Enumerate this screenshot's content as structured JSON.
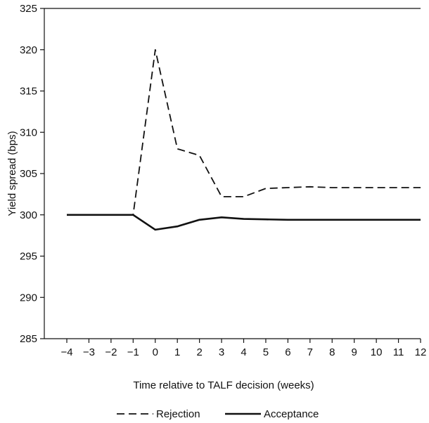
{
  "chart_data": {
    "type": "line",
    "title": "",
    "xlabel": "Time relative to TALF decision (weeks)",
    "ylabel": "Yield spread (bps)",
    "xlim": [
      -4,
      12
    ],
    "ylim": [
      285,
      325
    ],
    "x_ticks": [
      "−4",
      "−3",
      "−2",
      "−1",
      "0",
      "1",
      "2",
      "3",
      "4",
      "5",
      "6",
      "7",
      "8",
      "9",
      "10",
      "11",
      "12"
    ],
    "y_ticks": [
      "285",
      "290",
      "295",
      "300",
      "305",
      "310",
      "315",
      "320",
      "325"
    ],
    "grid": false,
    "legend_position": "bottom",
    "series": [
      {
        "name": "Rejection",
        "style": "dashed",
        "color": "#111111",
        "points": [
          [
            -4,
            300.0
          ],
          [
            -3,
            300.0
          ],
          [
            -2,
            300.0
          ],
          [
            -1,
            300.0
          ],
          [
            0,
            320.0
          ],
          [
            1,
            308.0
          ],
          [
            2,
            307.2
          ],
          [
            3,
            302.2
          ],
          [
            4,
            302.2
          ],
          [
            5,
            303.2
          ],
          [
            6,
            303.3
          ],
          [
            7,
            303.4
          ],
          [
            8,
            303.3
          ],
          [
            9,
            303.3
          ],
          [
            10,
            303.3
          ],
          [
            11,
            303.3
          ],
          [
            12,
            303.3
          ]
        ]
      },
      {
        "name": "Acceptance",
        "style": "solid",
        "color": "#111111",
        "points": [
          [
            -4,
            300.0
          ],
          [
            -3,
            300.0
          ],
          [
            -2,
            300.0
          ],
          [
            -1,
            300.0
          ],
          [
            0,
            298.2
          ],
          [
            1,
            298.6
          ],
          [
            2,
            299.4
          ],
          [
            3,
            299.7
          ],
          [
            4,
            299.5
          ],
          [
            5,
            299.45
          ],
          [
            6,
            299.4
          ],
          [
            7,
            299.4
          ],
          [
            8,
            299.4
          ],
          [
            9,
            299.4
          ],
          [
            10,
            299.4
          ],
          [
            11,
            299.4
          ],
          [
            12,
            299.4
          ]
        ]
      }
    ]
  }
}
